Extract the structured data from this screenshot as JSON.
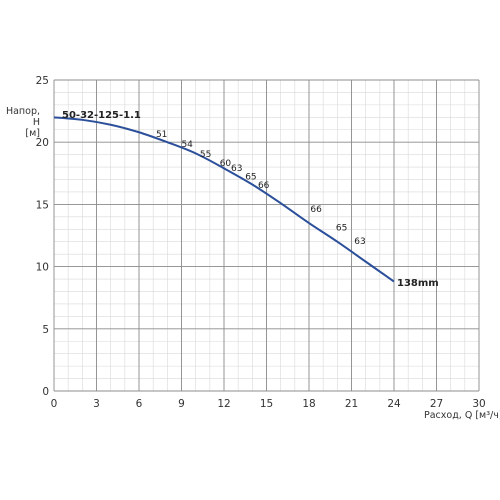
{
  "chart_data": {
    "type": "line",
    "title": "",
    "ylabel_lines": [
      "Напор,",
      "H",
      "[м]"
    ],
    "xlabel_prefix": "Расход, Q",
    "xlabel_unit": "[м³/ч]",
    "xlim": [
      0,
      30
    ],
    "ylim": [
      0,
      25
    ],
    "x_ticks": [
      0,
      3,
      6,
      9,
      12,
      15,
      18,
      21,
      24,
      27,
      30
    ],
    "y_ticks": [
      0,
      5,
      10,
      15,
      20,
      25
    ],
    "x_tick_labels": [
      "0",
      "3",
      "6",
      "9",
      "12",
      "15",
      "18",
      "21",
      "24",
      "27",
      "30"
    ],
    "y_tick_labels": [
      "0",
      "5",
      "10",
      "15",
      "20",
      "25"
    ],
    "minor_grid_step_x": 1,
    "minor_grid_step_y": 1,
    "grid": true,
    "legend": "none",
    "series": [
      {
        "name": "50-32-125-1.1",
        "color": "#2b4f9a",
        "x": [
          0,
          2,
          4,
          6,
          8,
          10,
          12,
          14,
          16,
          18,
          20,
          22,
          24
        ],
        "y": [
          22.0,
          21.8,
          21.4,
          20.8,
          20.0,
          19.1,
          17.9,
          16.6,
          15.1,
          13.5,
          12.0,
          10.4,
          8.8
        ]
      }
    ],
    "series_label": "50-32-125-1.1",
    "end_label": "138mm",
    "efficiency_labels": [
      {
        "text": "51",
        "x": 7.6,
        "y": 20.4
      },
      {
        "text": "54",
        "x": 9.4,
        "y": 19.6
      },
      {
        "text": "55",
        "x": 10.7,
        "y": 18.8
      },
      {
        "text": "60",
        "x": 12.1,
        "y": 18.1
      },
      {
        "text": "63",
        "x": 12.9,
        "y": 17.7
      },
      {
        "text": "65",
        "x": 13.9,
        "y": 17.0
      },
      {
        "text": "66",
        "x": 14.8,
        "y": 16.3
      },
      {
        "text": "66",
        "x": 18.5,
        "y": 14.4
      },
      {
        "text": "65",
        "x": 20.3,
        "y": 12.9
      },
      {
        "text": "63",
        "x": 21.6,
        "y": 11.8
      }
    ]
  }
}
